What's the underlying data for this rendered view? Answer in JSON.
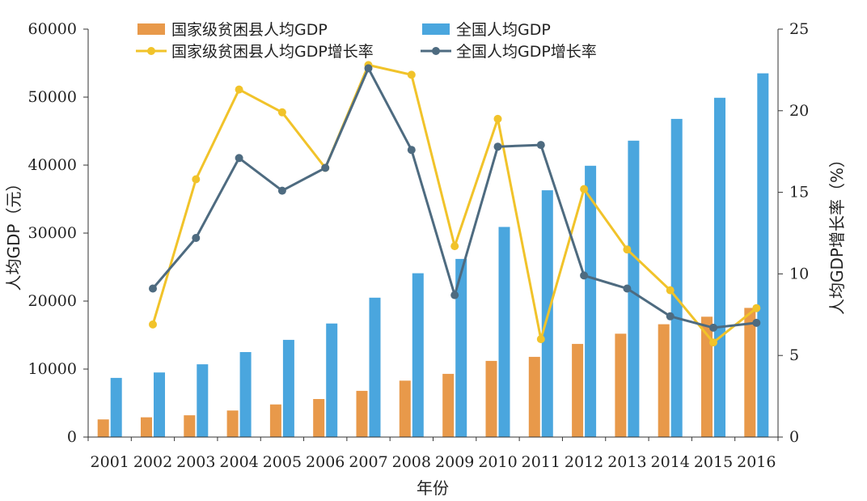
{
  "chart_data": {
    "type": "bar",
    "categories": [
      "2001",
      "2002",
      "2003",
      "2004",
      "2005",
      "2006",
      "2007",
      "2008",
      "2009",
      "2010",
      "2011",
      "2012",
      "2013",
      "2014",
      "2015",
      "2016"
    ],
    "series": [
      {
        "name": "国家级贫困县人均GDP",
        "kind": "bar",
        "axis": "left",
        "color": "#E8994A",
        "values": [
          2600,
          2900,
          3200,
          3900,
          4800,
          5600,
          6800,
          8300,
          9300,
          11200,
          11800,
          13700,
          15200,
          16600,
          17700,
          19000
        ]
      },
      {
        "name": "全国人均GDP",
        "kind": "bar",
        "axis": "left",
        "color": "#4AA6DE",
        "values": [
          8700,
          9500,
          10700,
          12500,
          14300,
          16700,
          20500,
          24100,
          26200,
          30900,
          36300,
          39900,
          43600,
          46800,
          49900,
          53500
        ]
      },
      {
        "name": "国家级贫困县人均GDP增长率",
        "kind": "line",
        "axis": "right",
        "color": "#F1C32A",
        "values": [
          null,
          6.9,
          15.8,
          21.3,
          19.9,
          16.5,
          22.8,
          22.2,
          11.7,
          19.5,
          6.0,
          15.2,
          11.5,
          9.0,
          5.8,
          7.9
        ]
      },
      {
        "name": "全国人均GDP增长率",
        "kind": "line",
        "axis": "right",
        "color": "#4E6B80",
        "values": [
          null,
          9.1,
          12.2,
          17.1,
          15.1,
          16.5,
          22.6,
          17.6,
          8.7,
          17.8,
          17.9,
          9.9,
          9.1,
          7.4,
          6.7,
          7.0
        ]
      }
    ],
    "xlabel": "年份",
    "ylabel": "人均GDP（元）",
    "ylabel_right": "人均GDP增长率（%）",
    "ylim": [
      0,
      60000
    ],
    "yticks": [
      "0",
      "10000",
      "20000",
      "30000",
      "40000",
      "50000",
      "60000"
    ],
    "ylim_right": [
      0,
      25
    ],
    "yticks_right": [
      "0",
      "5",
      "10",
      "15",
      "20",
      "25"
    ],
    "grid": false,
    "legend_position": "top-center"
  }
}
